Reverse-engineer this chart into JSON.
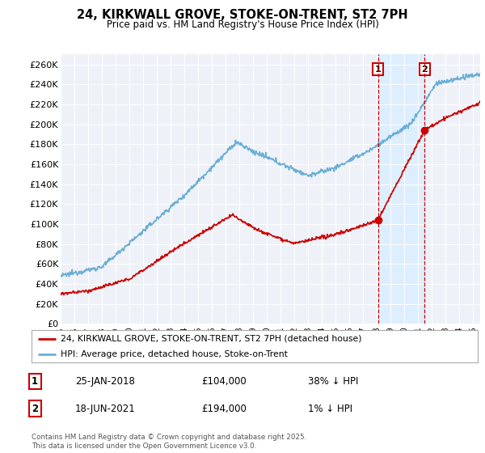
{
  "title": "24, KIRKWALL GROVE, STOKE-ON-TRENT, ST2 7PH",
  "subtitle": "Price paid vs. HM Land Registry's House Price Index (HPI)",
  "ylabel_ticks": [
    "£0",
    "£20K",
    "£40K",
    "£60K",
    "£80K",
    "£100K",
    "£120K",
    "£140K",
    "£160K",
    "£180K",
    "£200K",
    "£220K",
    "£240K",
    "£260K"
  ],
  "ytick_values": [
    0,
    20000,
    40000,
    60000,
    80000,
    100000,
    120000,
    140000,
    160000,
    180000,
    200000,
    220000,
    240000,
    260000
  ],
  "ylim": [
    0,
    270000
  ],
  "xlim_start": 1995.0,
  "xlim_end": 2025.5,
  "hpi_color": "#6baed6",
  "price_color": "#cc0000",
  "sale1_x": 2018.07,
  "sale1_y": 104000,
  "sale2_x": 2021.46,
  "sale2_y": 194000,
  "vline_color": "#cc0000",
  "shade_color": "#ddeeff",
  "bg_color": "#eef2f8",
  "legend_label_price": "24, KIRKWALL GROVE, STOKE-ON-TRENT, ST2 7PH (detached house)",
  "legend_label_hpi": "HPI: Average price, detached house, Stoke-on-Trent",
  "annotation1_date": "25-JAN-2018",
  "annotation1_price": "£104,000",
  "annotation1_hpi": "38% ↓ HPI",
  "annotation2_date": "18-JUN-2021",
  "annotation2_price": "£194,000",
  "annotation2_hpi": "1% ↓ HPI",
  "footer": "Contains HM Land Registry data © Crown copyright and database right 2025.\nThis data is licensed under the Open Government Licence v3.0."
}
